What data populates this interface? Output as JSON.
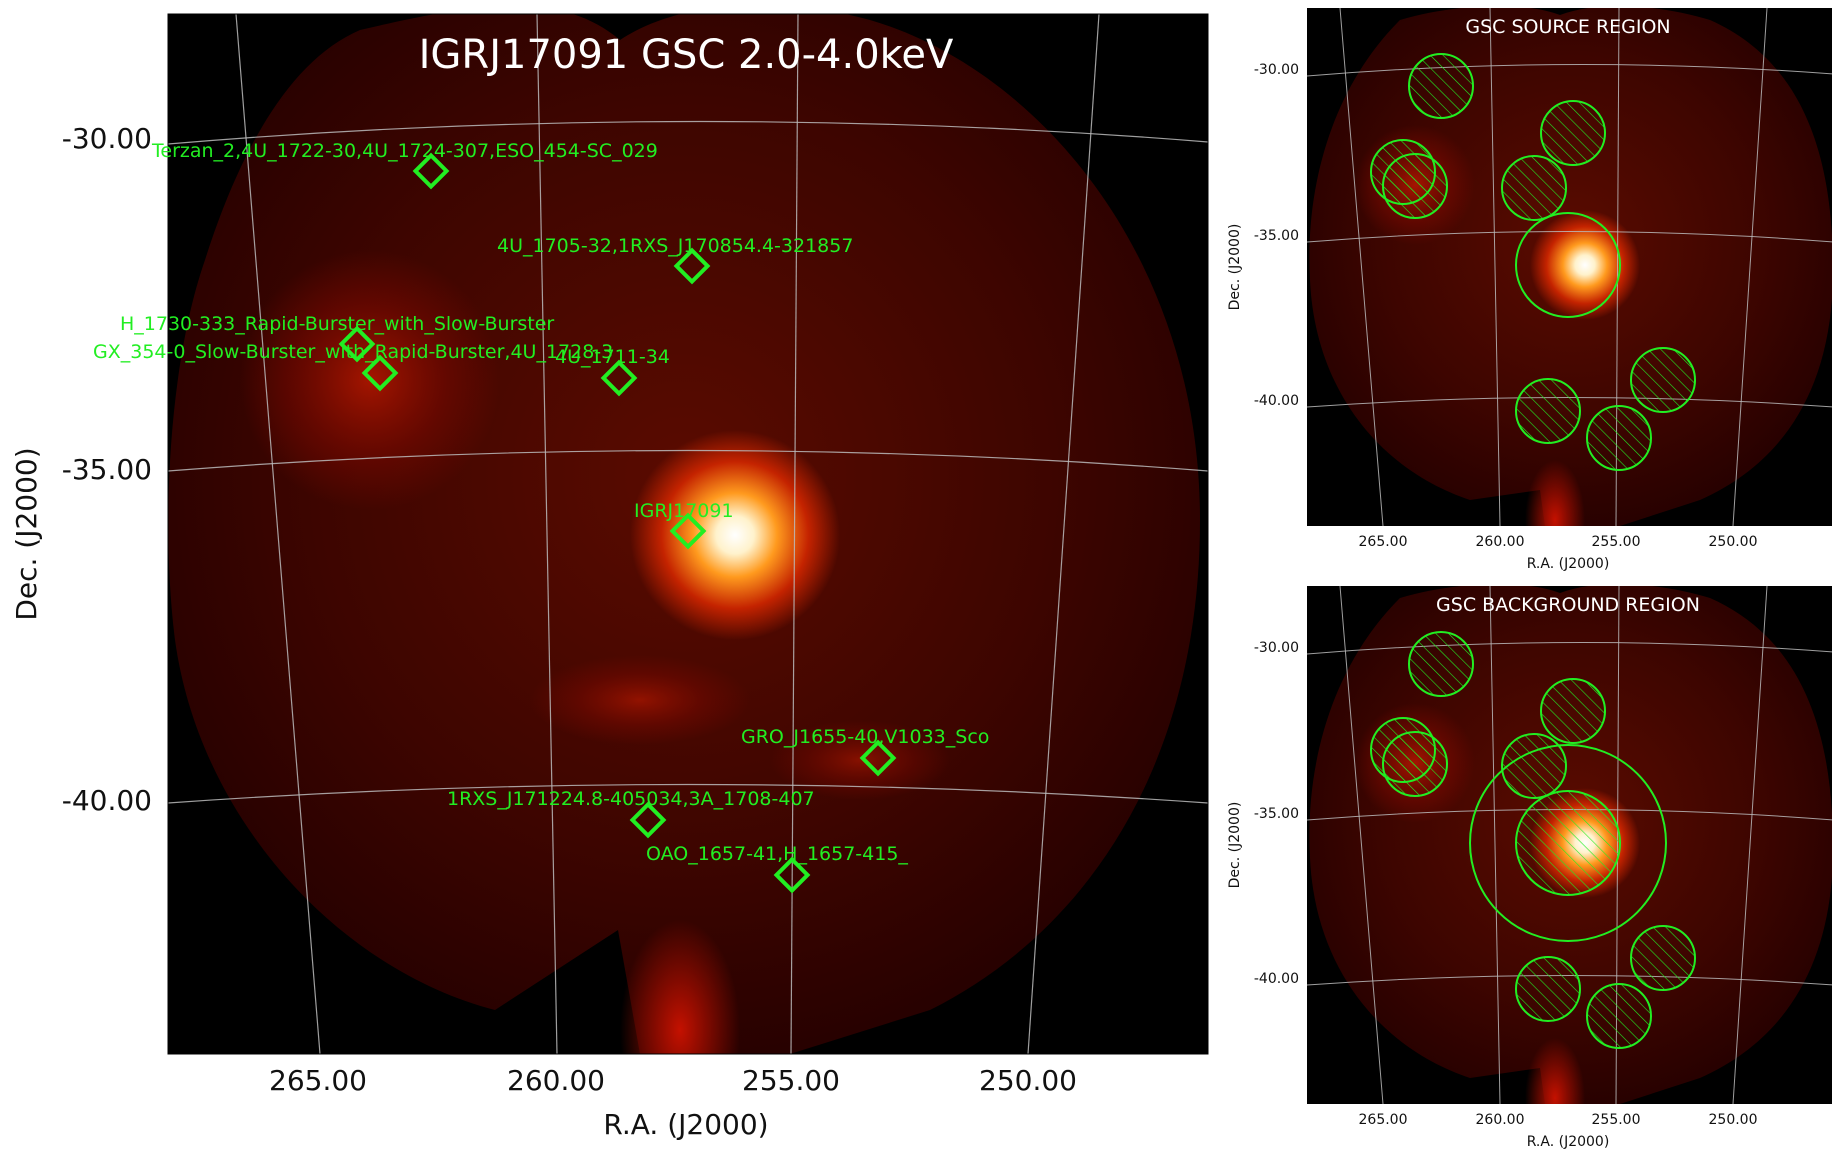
{
  "main_panel": {
    "title": "IGRJ17091 GSC 2.0-4.0keV",
    "xlabel": "R.A. (J2000)",
    "ylabel": "Dec. (J2000)",
    "x_ticks": [
      "265.00",
      "260.00",
      "255.00",
      "250.00"
    ],
    "y_ticks": [
      "-30.00",
      "-35.00",
      "-40.00"
    ],
    "sources": [
      {
        "label": "Terzan_2,4U_1722-30,4U_1724-307,ESO_454-SC_029"
      },
      {
        "label": "4U_1705-32,1RXS_J170854.4-321857"
      },
      {
        "label": "H_1730-333_Rapid-Burster_with_Slow-Burster"
      },
      {
        "label": "GX_354-0_Slow-Burster_with_Rapid-Burster,4U_1728-3"
      },
      {
        "label": "4U_1711-34"
      },
      {
        "label": "IGRJ17091"
      },
      {
        "label": "GRO_J1655-40,V1033_Sco"
      },
      {
        "label": "1RXS_J171224.8-405034,3A_1708-407"
      },
      {
        "label": "OAO_1657-41,H_1657-415_"
      }
    ]
  },
  "source_panel": {
    "title": "GSC SOURCE REGION",
    "xlabel": "R.A. (J2000)",
    "ylabel": "Dec. (J2000)",
    "x_ticks": [
      "265.00",
      "260.00",
      "255.00",
      "250.00"
    ],
    "y_ticks": [
      "-30.00",
      "-35.00",
      "-40.00"
    ]
  },
  "background_panel": {
    "title": "GSC BACKGROUND REGION",
    "xlabel": "R.A. (J2000)",
    "ylabel": "Dec. (J2000)",
    "x_ticks": [
      "265.00",
      "260.00",
      "255.00",
      "250.00"
    ],
    "y_ticks": [
      "-30.00",
      "-35.00",
      "-40.00"
    ]
  },
  "colors": {
    "marker_green": "#22ee22",
    "map_dark": "#2a0000",
    "map_mid": "#6e0a00",
    "hot_core": "#ffffff",
    "grid": "#bbbbbb",
    "background": "#000000"
  }
}
